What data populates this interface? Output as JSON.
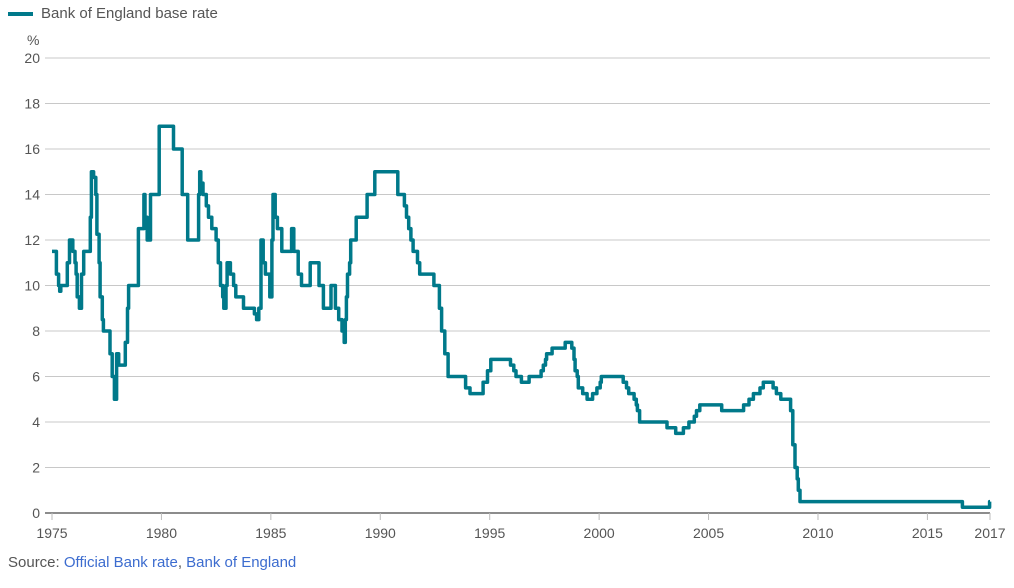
{
  "legend": {
    "label": "Bank of England base rate",
    "color": "#00798a"
  },
  "source": {
    "prefix": "Source: ",
    "link1": "Official Bank rate",
    "sep": ", ",
    "link2": "Bank of England"
  },
  "chart_data": {
    "type": "line",
    "step": true,
    "title": "",
    "ylabel": "%",
    "xlabel": "",
    "xlim": [
      1975,
      2017.86
    ],
    "ylim": [
      0,
      20
    ],
    "grid": true,
    "legend_position": "top-left",
    "x_ticks": [
      1975,
      1980,
      1985,
      1990,
      1995,
      2000,
      2005,
      2010,
      2015
    ],
    "x_tick_labels": [
      "1975",
      "1980",
      "1985",
      "1990",
      "1995",
      "2000",
      "2005",
      "2010",
      "2015"
    ],
    "x_end_label": "2017",
    "y_ticks": [
      0,
      2,
      4,
      6,
      8,
      10,
      12,
      14,
      16,
      18,
      20
    ],
    "series": [
      {
        "name": "Bank of England base rate",
        "color": "#00798a",
        "points": [
          [
            1975.0,
            11.5
          ],
          [
            1975.2,
            10.5
          ],
          [
            1975.3,
            10
          ],
          [
            1975.35,
            9.75
          ],
          [
            1975.4,
            10
          ],
          [
            1975.7,
            11
          ],
          [
            1975.8,
            12
          ],
          [
            1975.95,
            11.5
          ],
          [
            1976.05,
            11
          ],
          [
            1976.1,
            10.5
          ],
          [
            1976.15,
            9.5
          ],
          [
            1976.25,
            9
          ],
          [
            1976.35,
            10.5
          ],
          [
            1976.45,
            11.5
          ],
          [
            1976.75,
            13
          ],
          [
            1976.8,
            15
          ],
          [
            1976.9,
            14.75
          ],
          [
            1977.0,
            14
          ],
          [
            1977.05,
            12.25
          ],
          [
            1977.15,
            11
          ],
          [
            1977.2,
            9.5
          ],
          [
            1977.3,
            8.5
          ],
          [
            1977.35,
            8
          ],
          [
            1977.65,
            7
          ],
          [
            1977.75,
            6
          ],
          [
            1977.85,
            5
          ],
          [
            1977.95,
            7
          ],
          [
            1978.05,
            6.5
          ],
          [
            1978.35,
            7.5
          ],
          [
            1978.45,
            9
          ],
          [
            1978.5,
            10
          ],
          [
            1978.95,
            12.5
          ],
          [
            1979.2,
            14
          ],
          [
            1979.25,
            13
          ],
          [
            1979.35,
            12
          ],
          [
            1979.5,
            14
          ],
          [
            1979.9,
            17
          ],
          [
            1980.55,
            16
          ],
          [
            1980.95,
            14
          ],
          [
            1981.2,
            12
          ],
          [
            1981.7,
            14
          ],
          [
            1981.75,
            15
          ],
          [
            1981.8,
            14.5
          ],
          [
            1981.9,
            14
          ],
          [
            1982.05,
            13.5
          ],
          [
            1982.15,
            13
          ],
          [
            1982.3,
            12.5
          ],
          [
            1982.5,
            12
          ],
          [
            1982.6,
            11
          ],
          [
            1982.7,
            10
          ],
          [
            1982.8,
            9.5
          ],
          [
            1982.85,
            9
          ],
          [
            1982.95,
            10
          ],
          [
            1983.0,
            11
          ],
          [
            1983.15,
            10.5
          ],
          [
            1983.3,
            10
          ],
          [
            1983.4,
            9.5
          ],
          [
            1983.75,
            9
          ],
          [
            1984.25,
            8.75
          ],
          [
            1984.35,
            8.5
          ],
          [
            1984.45,
            9
          ],
          [
            1984.55,
            12
          ],
          [
            1984.65,
            11
          ],
          [
            1984.75,
            10.5
          ],
          [
            1984.95,
            9.5
          ],
          [
            1985.05,
            12
          ],
          [
            1985.1,
            14
          ],
          [
            1985.2,
            13
          ],
          [
            1985.3,
            12.5
          ],
          [
            1985.5,
            11.5
          ],
          [
            1985.95,
            12.5
          ],
          [
            1986.05,
            11.5
          ],
          [
            1986.25,
            10.5
          ],
          [
            1986.4,
            10
          ],
          [
            1986.8,
            11
          ],
          [
            1987.2,
            10
          ],
          [
            1987.4,
            9
          ],
          [
            1987.75,
            10
          ],
          [
            1987.95,
            9
          ],
          [
            1988.1,
            8.5
          ],
          [
            1988.25,
            8
          ],
          [
            1988.35,
            7.5
          ],
          [
            1988.4,
            8.5
          ],
          [
            1988.45,
            9.5
          ],
          [
            1988.5,
            10.5
          ],
          [
            1988.6,
            11
          ],
          [
            1988.65,
            12
          ],
          [
            1988.9,
            13
          ],
          [
            1989.4,
            14
          ],
          [
            1989.75,
            15
          ],
          [
            1990.8,
            14
          ],
          [
            1991.1,
            13.5
          ],
          [
            1991.2,
            13
          ],
          [
            1991.3,
            12.5
          ],
          [
            1991.4,
            12
          ],
          [
            1991.5,
            11.5
          ],
          [
            1991.7,
            11
          ],
          [
            1991.8,
            10.5
          ],
          [
            1992.45,
            10
          ],
          [
            1992.7,
            9
          ],
          [
            1992.8,
            8
          ],
          [
            1992.95,
            7
          ],
          [
            1993.1,
            6
          ],
          [
            1993.9,
            5.5
          ],
          [
            1994.1,
            5.25
          ],
          [
            1994.7,
            5.75
          ],
          [
            1994.9,
            6.25
          ],
          [
            1995.05,
            6.75
          ],
          [
            1995.95,
            6.5
          ],
          [
            1996.1,
            6.25
          ],
          [
            1996.2,
            6
          ],
          [
            1996.45,
            5.75
          ],
          [
            1996.8,
            6
          ],
          [
            1997.35,
            6.25
          ],
          [
            1997.45,
            6.5
          ],
          [
            1997.55,
            6.75
          ],
          [
            1997.6,
            7
          ],
          [
            1997.85,
            7.25
          ],
          [
            1998.45,
            7.5
          ],
          [
            1998.75,
            7.25
          ],
          [
            1998.85,
            6.75
          ],
          [
            1998.9,
            6.25
          ],
          [
            1999.0,
            6
          ],
          [
            1999.05,
            5.5
          ],
          [
            1999.25,
            5.25
          ],
          [
            1999.45,
            5
          ],
          [
            1999.7,
            5.25
          ],
          [
            1999.9,
            5.5
          ],
          [
            2000.05,
            5.75
          ],
          [
            2000.1,
            6
          ],
          [
            2001.1,
            5.75
          ],
          [
            2001.25,
            5.5
          ],
          [
            2001.35,
            5.25
          ],
          [
            2001.6,
            5
          ],
          [
            2001.7,
            4.75
          ],
          [
            2001.75,
            4.5
          ],
          [
            2001.85,
            4
          ],
          [
            2003.1,
            3.75
          ],
          [
            2003.5,
            3.5
          ],
          [
            2003.85,
            3.75
          ],
          [
            2004.1,
            4
          ],
          [
            2004.35,
            4.25
          ],
          [
            2004.45,
            4.5
          ],
          [
            2004.6,
            4.75
          ],
          [
            2005.6,
            4.5
          ],
          [
            2006.6,
            4.75
          ],
          [
            2006.85,
            5
          ],
          [
            2007.05,
            5.25
          ],
          [
            2007.35,
            5.5
          ],
          [
            2007.5,
            5.75
          ],
          [
            2007.95,
            5.5
          ],
          [
            2008.1,
            5.25
          ],
          [
            2008.3,
            5
          ],
          [
            2008.75,
            4.5
          ],
          [
            2008.85,
            3
          ],
          [
            2008.95,
            2
          ],
          [
            2009.05,
            1.5
          ],
          [
            2009.1,
            1
          ],
          [
            2009.18,
            0.5
          ],
          [
            2016.6,
            0.25
          ],
          [
            2017.84,
            0.5
          ],
          [
            2017.86,
            0.5
          ]
        ]
      }
    ]
  }
}
